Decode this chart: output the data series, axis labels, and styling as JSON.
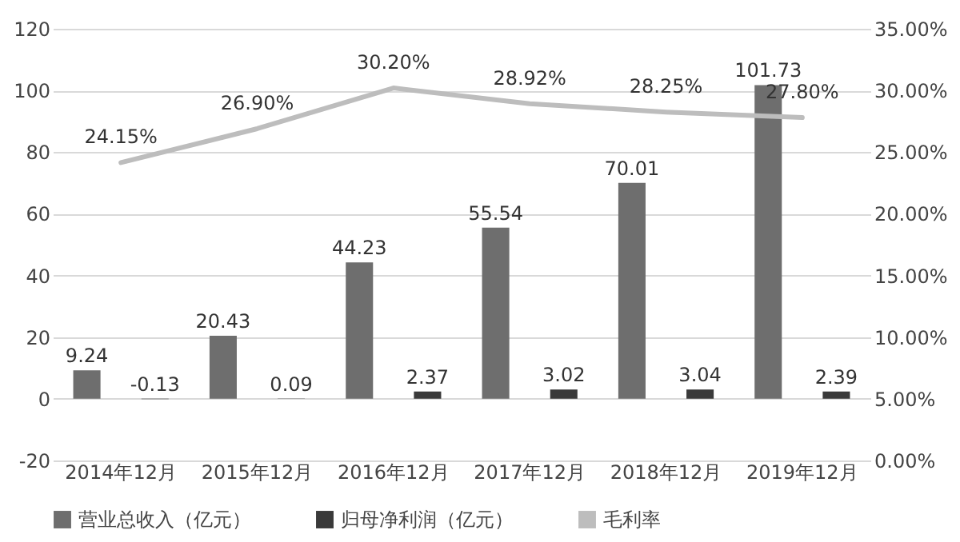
{
  "chart_data": {
    "type": "bar",
    "categories": [
      "2014年12月",
      "2015年12月",
      "2016年12月",
      "2017年12月",
      "2018年12月",
      "2019年12月"
    ],
    "series": [
      {
        "name": "营业总收入（亿元）",
        "color": "#6e6e6e",
        "values": [
          9.24,
          20.43,
          44.23,
          55.54,
          70.01,
          101.73
        ],
        "value_labels": [
          "9.24",
          "20.43",
          "44.23",
          "55.54",
          "70.01",
          "101.73"
        ]
      },
      {
        "name": "归母净利润（亿元）",
        "color": "#3a3a3a",
        "values": [
          -0.13,
          0.09,
          2.37,
          3.02,
          3.04,
          2.39
        ],
        "value_labels": [
          "-0.13",
          "0.09",
          "2.37",
          "3.02",
          "3.04",
          "2.39"
        ]
      },
      {
        "name": "毛利率",
        "type": "line",
        "axis": "y2",
        "color": "#bdbdbd",
        "values": [
          24.15,
          26.9,
          30.2,
          28.92,
          28.25,
          27.8
        ],
        "value_labels": [
          "24.15%",
          "26.90%",
          "30.20%",
          "28.92%",
          "28.25%",
          "27.80%"
        ]
      }
    ],
    "ylim": [
      -20,
      120
    ],
    "yticks": [
      -20,
      0,
      20,
      40,
      60,
      80,
      100,
      120
    ],
    "y2lim": [
      0,
      35
    ],
    "y2ticks": [
      {
        "value": 0,
        "label": "0.00%"
      },
      {
        "value": 5,
        "label": "5.00%"
      },
      {
        "value": 10,
        "label": "10.00%"
      },
      {
        "value": 15,
        "label": "15.00%"
      },
      {
        "value": 20,
        "label": "20.00%"
      },
      {
        "value": 25,
        "label": "25.00%"
      },
      {
        "value": 30,
        "label": "30.00%"
      },
      {
        "value": 35,
        "label": "35.00%"
      }
    ],
    "grid": "y",
    "legend": "bottom"
  }
}
